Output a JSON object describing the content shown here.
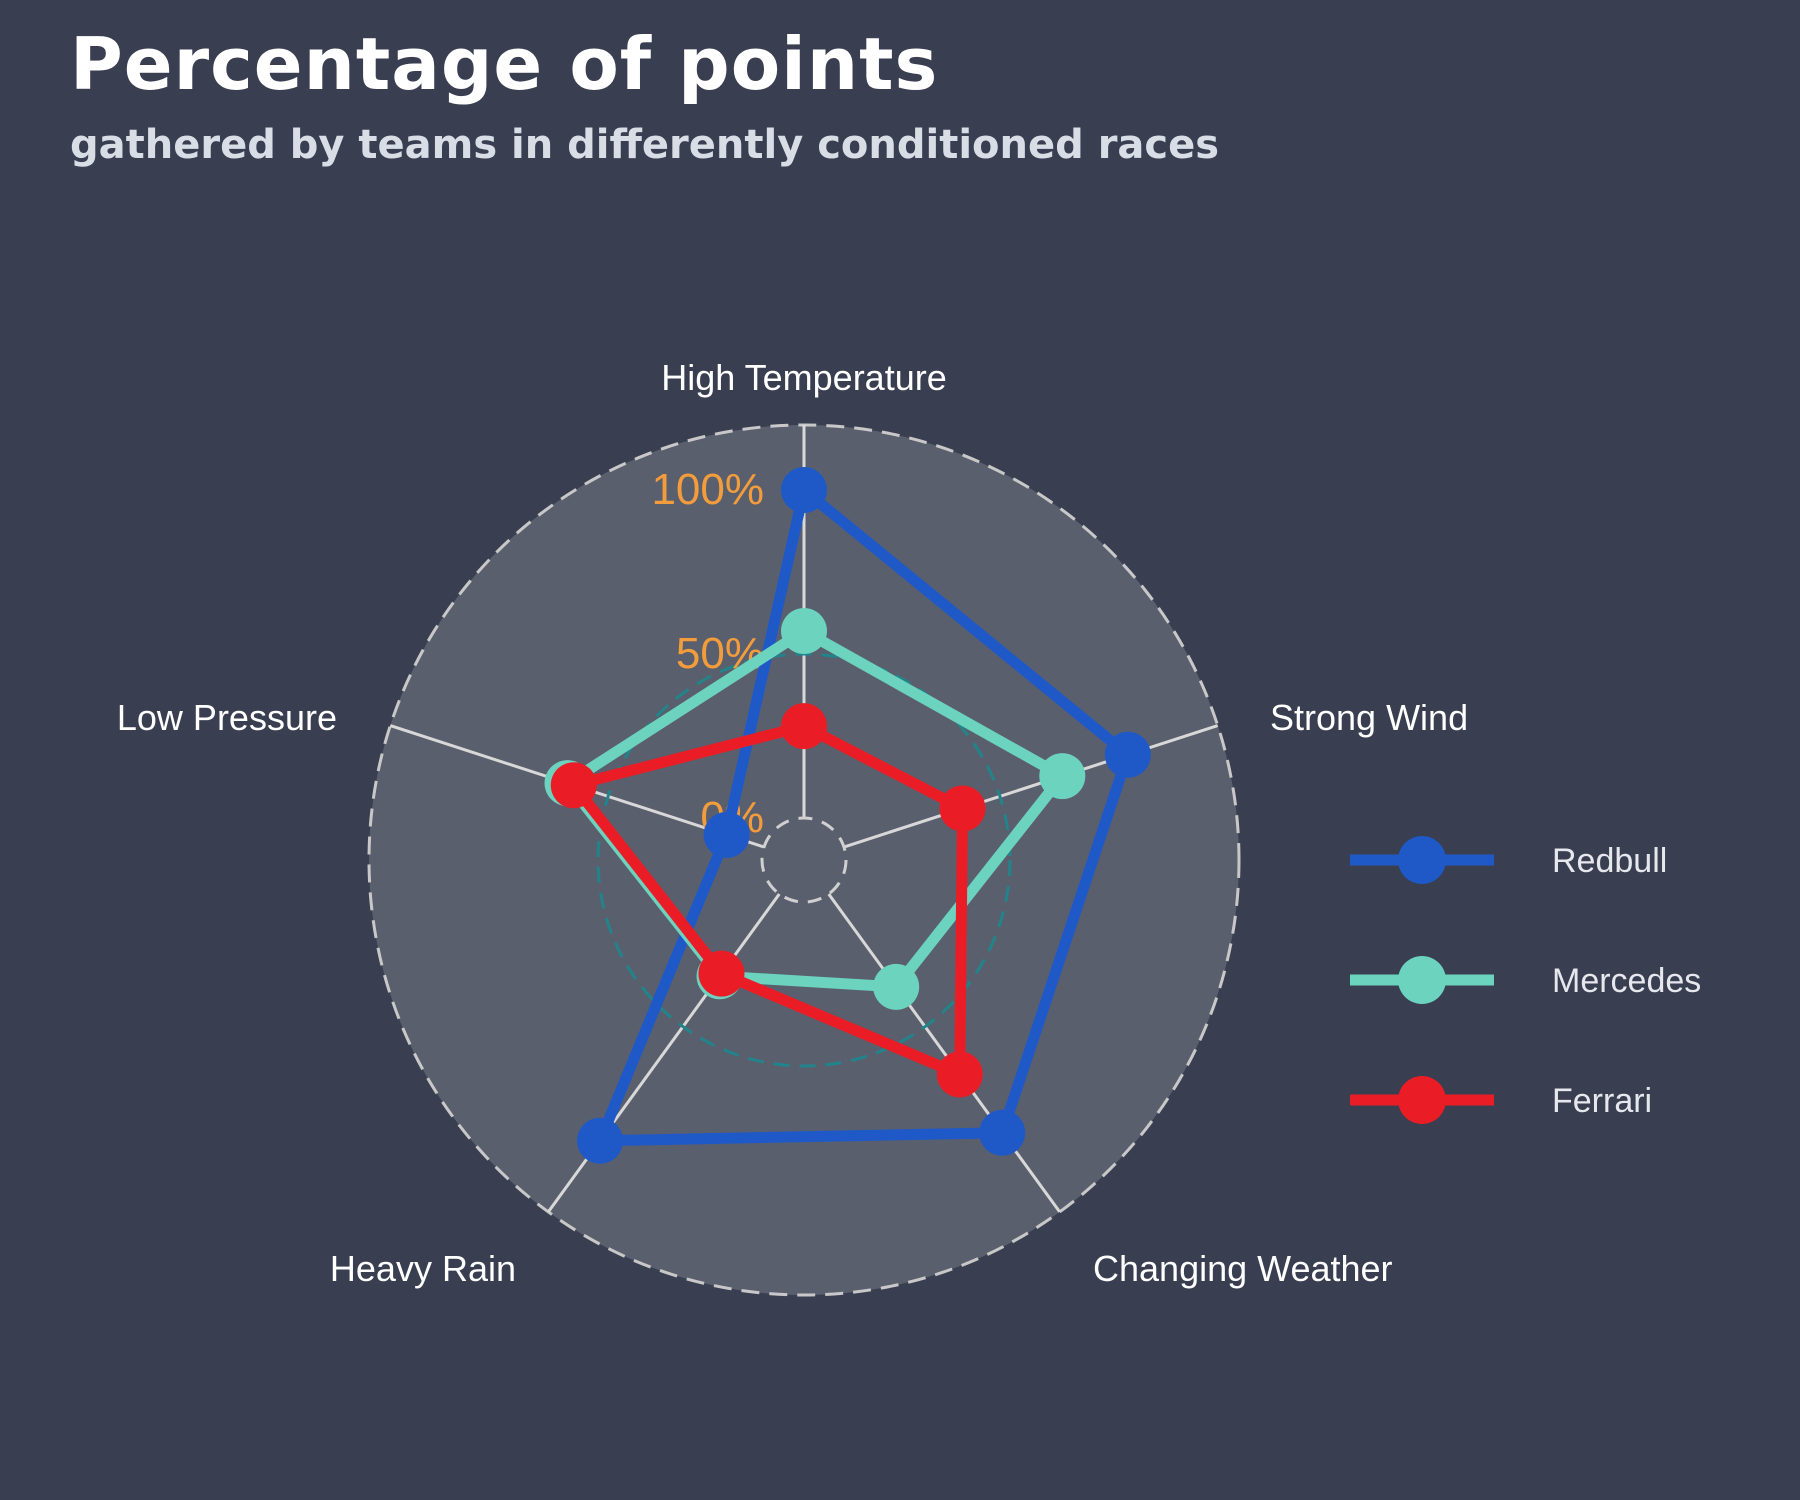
{
  "title": "Percentage of points",
  "subtitle": "gathered by teams in differently conditioned races",
  "colors": {
    "background": "#393e50",
    "plot_background": "#5a5f6e",
    "grid": "#d8d8d8",
    "gridline_mid": "#22848a",
    "tick_labels": "#f39c3c",
    "axis_labels": "#ffffff"
  },
  "chart_data": {
    "type": "radar",
    "title": "Percentage of points",
    "subtitle": "gathered by teams in differently conditioned races",
    "axes": [
      "High Temperature",
      "Strong Wind",
      "Changing Weather",
      "Heavy Rain",
      "Low Pressure"
    ],
    "rlim": [
      0,
      100
    ],
    "r_ticks": [
      0,
      50,
      100
    ],
    "r_tick_labels": [
      "0%",
      "50%",
      "100%"
    ],
    "grid": true,
    "legend_position": "right",
    "series": [
      {
        "name": "Redbull",
        "color": "#1f59c8",
        "values": [
          100,
          91,
          90,
          93,
          12
        ]
      },
      {
        "name": "Mercedes",
        "color": "#6cd3bf",
        "values": [
          57,
          70,
          35,
          31,
          63
        ]
      },
      {
        "name": "Ferrari",
        "color": "#ea1d26",
        "values": [
          28,
          38,
          68,
          30,
          61
        ]
      }
    ]
  }
}
